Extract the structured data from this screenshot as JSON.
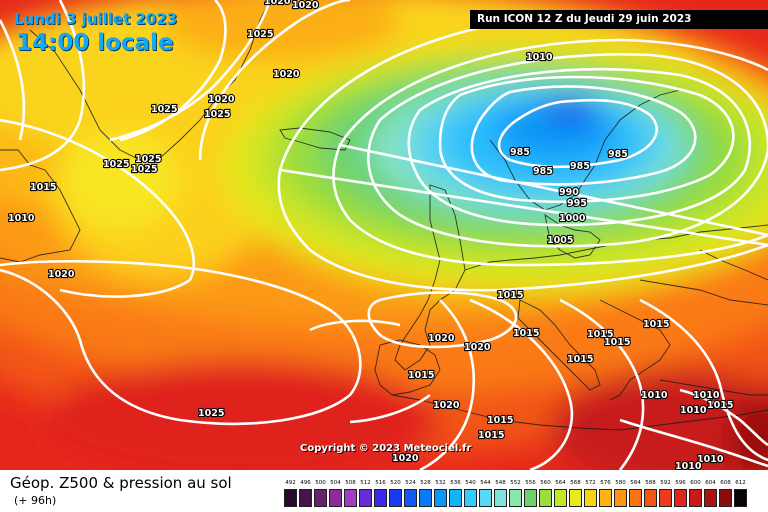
{
  "header": {
    "date": "Lundi 3 juillet 2023",
    "local_time": "14:00 locale",
    "run_info": "Run ICON 12 Z du Jeudi 29 juin 2023"
  },
  "copyright": "Copyright © 2023 Meteociel.fr",
  "footer": {
    "field_title": "Géop. Z500 & pression au sol",
    "lead_time": "(+ 96h)"
  },
  "legend": {
    "levels": [
      "492",
      "496",
      "500",
      "504",
      "508",
      "512",
      "516",
      "520",
      "524",
      "528",
      "532",
      "536",
      "540",
      "544",
      "548",
      "552",
      "556",
      "560",
      "564",
      "568",
      "572",
      "576",
      "580",
      "584",
      "588",
      "592",
      "596",
      "600",
      "604",
      "608",
      "612"
    ],
    "colors": [
      "#2a0a2a",
      "#4a1248",
      "#6a1e6e",
      "#8c2c98",
      "#a23cc4",
      "#6a2ad8",
      "#3a2aea",
      "#1a3af0",
      "#1258f5",
      "#0a78f8",
      "#0a96fa",
      "#10b4fc",
      "#36cafe",
      "#5ad8f4",
      "#7ee2da",
      "#8ae6a8",
      "#6ed46a",
      "#9ade3a",
      "#c4e624",
      "#e8ea1c",
      "#fad21a",
      "#fcb416",
      "#fc9614",
      "#fa7414",
      "#f45416",
      "#ec3a1c",
      "#e2241e",
      "#c8181a",
      "#a81214",
      "#880c10",
      "#0c0404"
    ]
  },
  "pressure_labels": [
    "1020",
    "1020",
    "1025",
    "1025",
    "1020",
    "1020",
    "1025",
    "1025",
    "1025",
    "1025",
    "1015",
    "1010",
    "1020",
    "1010",
    "985",
    "985",
    "985",
    "985",
    "990",
    "995",
    "1000",
    "1005",
    "1015",
    "1015",
    "1015",
    "1015",
    "1020",
    "1020",
    "1015",
    "1015",
    "1010",
    "1010",
    "1015",
    "1015",
    "1015",
    "1020",
    "1020",
    "1025",
    "1015",
    "1010",
    "1010",
    "1010"
  ],
  "colors": {
    "banner_bg": "#000000",
    "title_text": "#12a9f5",
    "isobar": "#ffffff"
  }
}
